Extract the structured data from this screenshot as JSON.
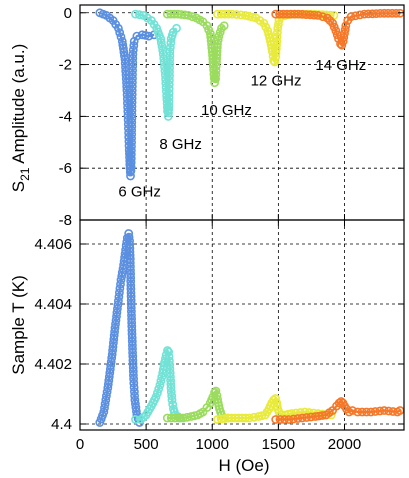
{
  "chart_data": [
    {
      "type": "line",
      "ylabel_prefix": "S",
      "ylabel_subscript": "21",
      "ylabel_suffix": " Amplitude (a.u.)",
      "xlim": [
        0,
        2450
      ],
      "ylim": [
        -8,
        0.3
      ],
      "yticks": [
        0,
        -2,
        -4,
        -6,
        -8
      ],
      "ytick_labels": [
        "0",
        "-2",
        "-4",
        "-6",
        "-8"
      ],
      "xticks": [
        0,
        500,
        1000,
        1500,
        2000
      ],
      "grid": true,
      "annotations": [
        {
          "text": "6 GHz",
          "x": 290,
          "y": -7.1
        },
        {
          "text": "8 GHz",
          "x": 600,
          "y": -5.25
        },
        {
          "text": "10 GHz",
          "x": 915,
          "y": -3.95
        },
        {
          "text": "12 GHz",
          "x": 1290,
          "y": -2.8
        },
        {
          "text": "14 GHz",
          "x": 1780,
          "y": -2.2
        }
      ],
      "series": [
        {
          "color": "#5b8fe0",
          "x": [
            150,
            200,
            250,
            290,
            320,
            340,
            355,
            365,
            372,
            378,
            382,
            386,
            390,
            395,
            400,
            410,
            430,
            470,
            520,
            560
          ],
          "y": [
            0,
            -0.1,
            -0.3,
            -0.6,
            -1.1,
            -1.8,
            -3.0,
            -4.3,
            -5.3,
            -6.0,
            -6.3,
            -6.1,
            -5.0,
            -3.0,
            -1.6,
            -1.1,
            -0.9,
            -0.85,
            -0.9,
            -0.85
          ]
        },
        {
          "color": "#72e2d6",
          "x": [
            420,
            480,
            540,
            580,
            610,
            630,
            645,
            655,
            662,
            668,
            672,
            676,
            680,
            690,
            705,
            730
          ],
          "y": [
            -0.05,
            -0.1,
            -0.3,
            -0.6,
            -1.0,
            -1.6,
            -2.4,
            -3.2,
            -3.8,
            -4.0,
            -3.6,
            -2.6,
            -1.5,
            -1.0,
            -0.75,
            -0.6
          ]
        },
        {
          "color": "#9bdc5e",
          "x": [
            660,
            740,
            820,
            880,
            930,
            960,
            985,
            1000,
            1010,
            1018,
            1025,
            1032,
            1040,
            1050,
            1070,
            1090
          ],
          "y": [
            -0.05,
            -0.05,
            -0.1,
            -0.2,
            -0.35,
            -0.5,
            -0.8,
            -1.5,
            -2.2,
            -2.7,
            -2.55,
            -1.9,
            -1.2,
            -0.9,
            -0.6,
            -0.5
          ]
        },
        {
          "color": "#e8ea3c",
          "x": [
            1040,
            1150,
            1250,
            1330,
            1390,
            1420,
            1440,
            1455,
            1465,
            1472,
            1480,
            1488,
            1495,
            1505,
            1520,
            1600,
            1750,
            1920
          ],
          "y": [
            -0.05,
            -0.05,
            -0.1,
            -0.2,
            -0.4,
            -0.7,
            -1.1,
            -1.5,
            -1.85,
            -1.9,
            -1.7,
            -1.1,
            -0.6,
            -0.3,
            -0.15,
            -0.05,
            -0.05,
            -0.1
          ]
        },
        {
          "color": "#f5782a",
          "x": [
            1480,
            1650,
            1800,
            1870,
            1910,
            1935,
            1955,
            1970,
            1980,
            1990,
            2000,
            2010,
            2025,
            2050,
            2150,
            2300,
            2420
          ],
          "y": [
            -0.05,
            -0.05,
            -0.1,
            -0.2,
            -0.4,
            -0.7,
            -1.0,
            -1.2,
            -1.25,
            -1.1,
            -0.8,
            -0.5,
            -0.3,
            -0.15,
            -0.05,
            -0.02,
            -0.02
          ]
        }
      ]
    },
    {
      "type": "line",
      "xlabel": "H (Oe)",
      "ylabel": "Sample T (K)",
      "xlim": [
        0,
        2450
      ],
      "ylim": [
        4.3998,
        4.4068
      ],
      "yticks": [
        4.4,
        4.402,
        4.404,
        4.406
      ],
      "ytick_labels": [
        "4.4",
        "4.402",
        "4.404",
        "4.406"
      ],
      "xticks": [
        0,
        500,
        1000,
        1500,
        2000
      ],
      "xtick_labels": [
        "0",
        "500",
        "1000",
        "1500",
        "2000"
      ],
      "grid": true,
      "series": [
        {
          "color": "#5b8fe0",
          "x": [
            150,
            180,
            210,
            240,
            265,
            290,
            310,
            330,
            345,
            358,
            368,
            375,
            380,
            385,
            390,
            397,
            405,
            415,
            430,
            450
          ],
          "y": [
            4.40005,
            4.4004,
            4.4012,
            4.4022,
            4.4032,
            4.4041,
            4.4048,
            4.4053,
            4.4058,
            4.4062,
            4.40635,
            4.4061,
            4.4055,
            4.4045,
            4.4035,
            4.4025,
            4.4015,
            4.4008,
            4.4003,
            4.40005
          ]
        },
        {
          "color": "#72e2d6",
          "x": [
            420,
            460,
            500,
            540,
            575,
            605,
            625,
            640,
            652,
            662,
            670,
            676,
            682,
            688,
            696,
            706,
            720,
            740,
            760
          ],
          "y": [
            4.40015,
            4.40015,
            4.4003,
            4.4006,
            4.4009,
            4.4013,
            4.4017,
            4.40205,
            4.4023,
            4.40245,
            4.4024,
            4.4021,
            4.4017,
            4.4012,
            4.4008,
            4.4005,
            4.4003,
            4.40025,
            4.4002
          ]
        },
        {
          "color": "#9bdc5e",
          "x": [
            660,
            720,
            780,
            840,
            890,
            930,
            960,
            985,
            1005,
            1018,
            1028,
            1036,
            1045,
            1055,
            1070,
            1090,
            1120
          ],
          "y": [
            4.4002,
            4.4002,
            4.4002,
            4.40025,
            4.4003,
            4.4004,
            4.40055,
            4.4007,
            4.4009,
            4.40105,
            4.4011,
            4.40095,
            4.4007,
            4.4005,
            4.4003,
            4.4002,
            4.4002
          ]
        },
        {
          "color": "#e8ea3c",
          "x": [
            1040,
            1120,
            1200,
            1280,
            1350,
            1400,
            1430,
            1450,
            1465,
            1478,
            1488,
            1495,
            1505,
            1520,
            1550,
            1600,
            1700,
            1800,
            1900
          ],
          "y": [
            4.40015,
            4.4002,
            4.4002,
            4.4002,
            4.40025,
            4.4003,
            4.4005,
            4.4007,
            4.4008,
            4.40085,
            4.4007,
            4.4005,
            4.4004,
            4.4003,
            4.4003,
            4.40035,
            4.4004,
            4.40035,
            4.4003
          ]
        },
        {
          "color": "#f5782a",
          "x": [
            1480,
            1580,
            1680,
            1780,
            1860,
            1910,
            1940,
            1960,
            1975,
            1988,
            2000,
            2015,
            2035,
            2060,
            2100,
            2200,
            2300,
            2400,
            2420
          ],
          "y": [
            4.40015,
            4.40015,
            4.4002,
            4.40025,
            4.4003,
            4.40045,
            4.4006,
            4.4007,
            4.40075,
            4.4007,
            4.4006,
            4.4005,
            4.4004,
            4.40045,
            4.4004,
            4.4004,
            4.40045,
            4.4004,
            4.40045
          ]
        }
      ]
    }
  ]
}
